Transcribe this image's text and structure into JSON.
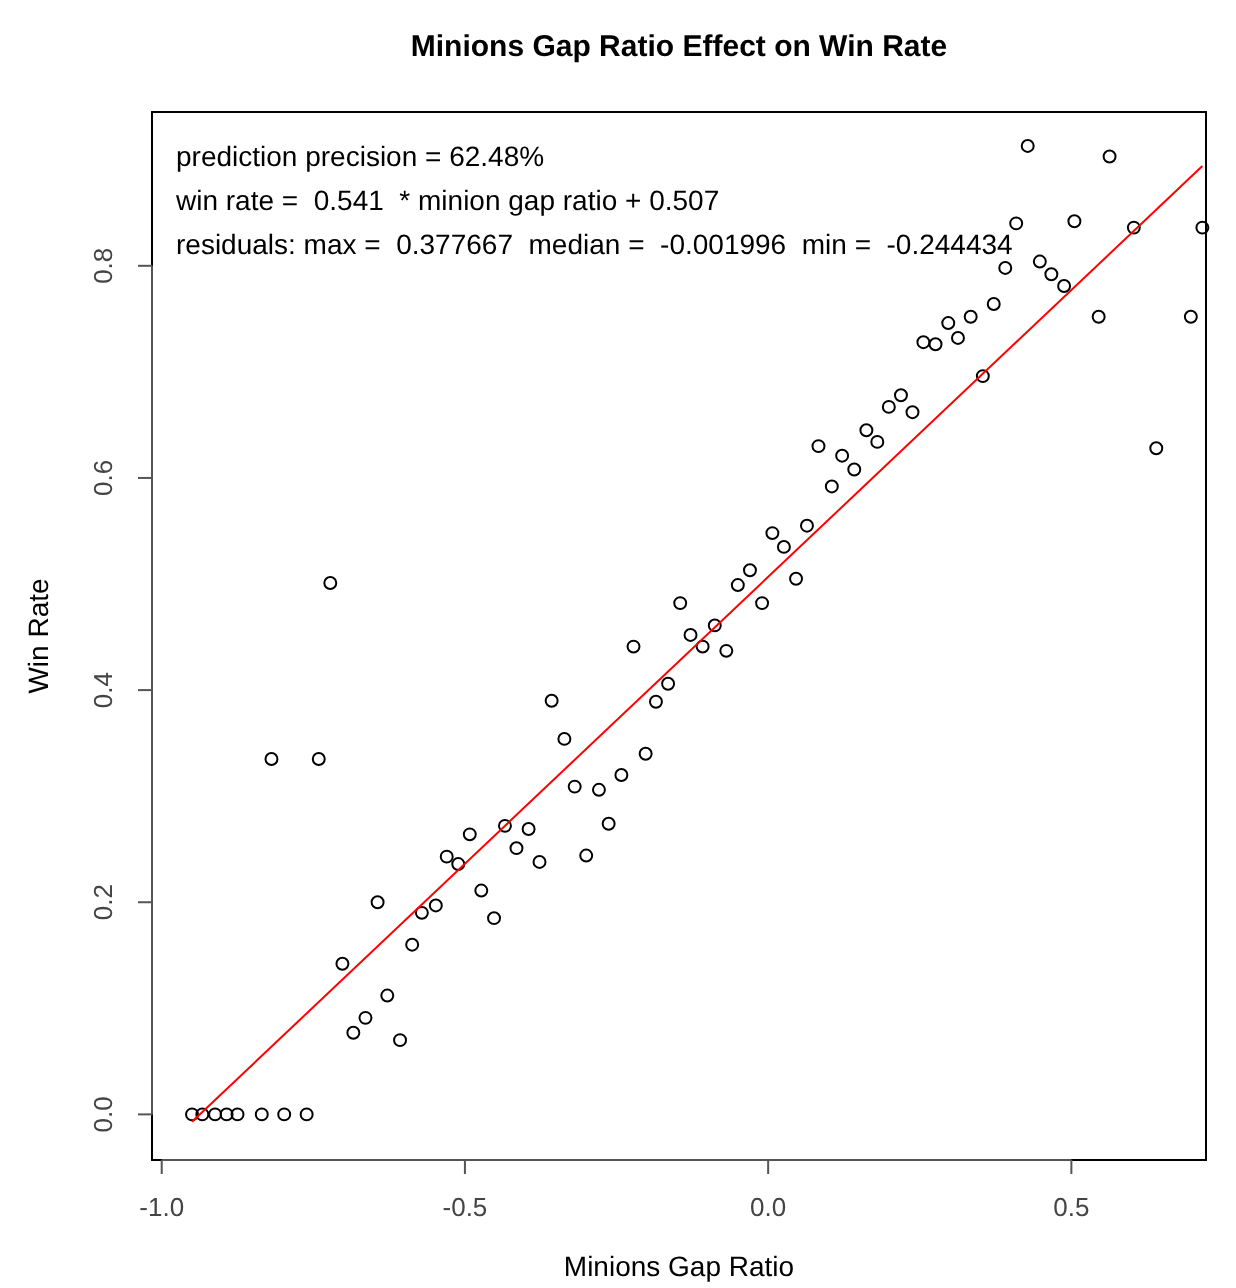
{
  "chart_data": {
    "type": "scatter",
    "title": "Minions Gap Ratio Effect on Win Rate",
    "xlabel": "Minions Gap Ratio",
    "ylabel": "Win Rate",
    "annotations": [
      "prediction precision = 62.48%",
      "win rate =  0.541  * minion gap ratio + 0.507",
      "residuals: max =  0.377667  median =  -0.001996  min =  -0.244434"
    ],
    "xlim": [
      -1.016,
      0.722
    ],
    "ylim": [
      -0.043,
      0.945
    ],
    "xticks": [
      {
        "value": -1,
        "label": "-1.0"
      },
      {
        "value": -0.5,
        "label": "-0.5"
      },
      {
        "value": 0,
        "label": "0.0"
      },
      {
        "value": 0.5,
        "label": "0.5"
      }
    ],
    "yticks": [
      {
        "value": 0,
        "label": "0.0"
      },
      {
        "value": 0.2,
        "label": "0.2"
      },
      {
        "value": 0.4,
        "label": "0.4"
      },
      {
        "value": 0.6,
        "label": "0.6"
      },
      {
        "value": 0.8,
        "label": "0.8"
      }
    ],
    "grid": false,
    "marker": "circle",
    "series": [
      {
        "color": "#000000",
        "x": [
          -0.95,
          -0.933,
          -0.912,
          -0.893,
          -0.875,
          -0.835,
          -0.798,
          -0.761,
          -0.819,
          -0.741,
          -0.722,
          -0.702,
          -0.684,
          -0.664,
          -0.644,
          -0.628,
          -0.607,
          -0.587,
          -0.571,
          -0.548,
          -0.53,
          -0.511,
          -0.492,
          -0.473,
          -0.452,
          -0.434,
          -0.415,
          -0.395,
          -0.377,
          -0.357,
          -0.336,
          -0.319,
          -0.3,
          -0.279,
          -0.263,
          -0.242,
          -0.222,
          -0.202,
          -0.185,
          -0.165,
          -0.145,
          -0.128,
          -0.108,
          -0.088,
          -0.069,
          -0.05,
          -0.03,
          -0.01,
          0.007,
          0.026,
          0.046,
          0.064,
          0.083,
          0.105,
          0.122,
          0.142,
          0.162,
          0.18,
          0.199,
          0.219,
          0.238,
          0.256,
          0.276,
          0.297,
          0.313,
          0.334,
          0.354,
          0.372,
          0.391,
          0.409,
          0.428,
          0.448,
          0.467,
          0.488,
          0.505,
          0.545,
          0.563,
          0.603,
          0.64,
          0.697,
          0.716
        ],
        "values": [
          0,
          0,
          0,
          0,
          0,
          0,
          0,
          0,
          0.335,
          0.335,
          0.501,
          0.142,
          0.077,
          0.091,
          0.2,
          0.112,
          0.07,
          0.16,
          0.19,
          0.197,
          0.243,
          0.236,
          0.264,
          0.211,
          0.185,
          0.272,
          0.251,
          0.269,
          0.238,
          0.39,
          0.354,
          0.309,
          0.244,
          0.306,
          0.274,
          0.32,
          0.441,
          0.34,
          0.389,
          0.406,
          0.482,
          0.452,
          0.441,
          0.461,
          0.437,
          0.499,
          0.513,
          0.482,
          0.548,
          0.535,
          0.505,
          0.555,
          0.63,
          0.592,
          0.621,
          0.608,
          0.645,
          0.634,
          0.667,
          0.678,
          0.662,
          0.728,
          0.726,
          0.746,
          0.732,
          0.752,
          0.696,
          0.764,
          0.798,
          0.84,
          0.913,
          0.804,
          0.792,
          0.781,
          0.842,
          0.752,
          0.903,
          0.836,
          0.628,
          0.752,
          0.836
        ]
      },
      {
        "type": "line",
        "color": "#ff0000",
        "marker": "none",
        "line_style": "solid",
        "x": [
          -0.95,
          0.716
        ],
        "values": [
          -0.007,
          0.894
        ]
      }
    ]
  }
}
